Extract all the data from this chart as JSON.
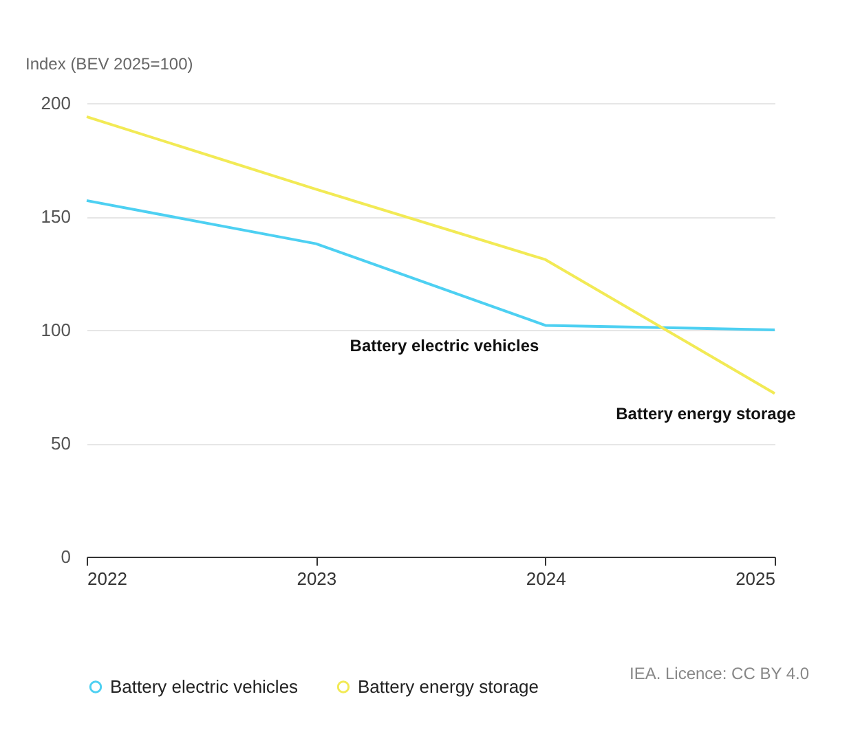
{
  "chart_data": {
    "type": "line",
    "ylabel": "Index (BEV 2025=100)",
    "x": [
      2022,
      2023,
      2024,
      2025
    ],
    "xlim": [
      2022,
      2025
    ],
    "xticks": [
      2022,
      2023,
      2024,
      2025
    ],
    "ylim": [
      0,
      200
    ],
    "yticks": [
      0,
      50,
      100,
      150,
      200
    ],
    "grid": "y",
    "legend": "bottom",
    "marker": "none",
    "line_style": "solid",
    "series": [
      {
        "name": "Battery electric vehicles",
        "color": "#4dd0f2",
        "values": [
          157,
          138,
          102,
          100
        ]
      },
      {
        "name": "Battery energy storage",
        "color": "#f2ea55",
        "values": [
          194,
          162,
          131,
          72
        ]
      }
    ],
    "annotations": [
      "Battery electric vehicles",
      "Battery energy storage",
      "IEA. Licence: CC BY 4.0"
    ]
  }
}
